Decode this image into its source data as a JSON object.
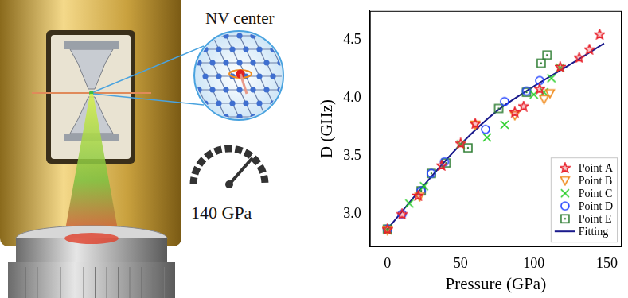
{
  "chart_data": {
    "type": "scatter",
    "xlabel": "Pressure (GPa)",
    "ylabel": "D (GHz)",
    "annotations": [
      "NV center",
      "140 GPa"
    ],
    "xlim": [
      -12,
      160
    ],
    "xticks": [
      0,
      50,
      100,
      150
    ],
    "ylim": [
      2.72,
      4.75
    ],
    "yticks": [
      {
        "value": 3,
        "label": "3.0"
      },
      {
        "value": 3.5,
        "label": "3.5"
      },
      {
        "value": 4,
        "label": "4.0"
      },
      {
        "value": 4.5,
        "label": "4.5"
      }
    ],
    "grid": false,
    "legend": "lower right",
    "series": [
      {
        "name": "Point A",
        "color": "#e8202a",
        "marker": "star",
        "x": [
          0,
          10,
          21,
          37,
          50,
          60,
          87,
          93,
          104,
          118,
          131,
          138,
          145
        ],
        "values": [
          2.87,
          3.0,
          3.16,
          3.42,
          3.61,
          3.78,
          3.88,
          3.93,
          4.08,
          4.27,
          4.35,
          4.42,
          4.55
        ]
      },
      {
        "name": "Point B",
        "color": "#f08c1e",
        "marker": "triangle_down",
        "x": [
          0,
          22,
          60,
          87,
          107,
          111
        ],
        "values": [
          2.86,
          3.15,
          3.77,
          3.85,
          3.99,
          4.04
        ]
      },
      {
        "name": "Point C",
        "color": "#22cc22",
        "marker": "x",
        "x": [
          0,
          15,
          25,
          50,
          68,
          80,
          100,
          107,
          112,
          118
        ],
        "values": [
          2.86,
          3.09,
          3.24,
          3.6,
          3.66,
          3.77,
          4.03,
          4.05,
          4.17,
          4.26
        ]
      },
      {
        "name": "Point D",
        "color": "#1f3fff",
        "marker": "circle",
        "x": [
          0,
          10,
          23,
          30,
          39,
          67,
          80,
          95,
          104
        ],
        "values": [
          2.87,
          3.0,
          3.2,
          3.35,
          3.45,
          3.73,
          3.97,
          4.06,
          4.15
        ]
      },
      {
        "name": "Point E",
        "color": "#2e7d32",
        "marker": "square",
        "x": [
          0,
          23,
          30,
          40,
          55,
          76,
          95,
          105,
          109
        ],
        "values": [
          2.87,
          3.2,
          3.35,
          3.44,
          3.57,
          3.91,
          4.05,
          4.3,
          4.37
        ]
      },
      {
        "name": "Fitting",
        "color": "#1a1a8c",
        "type": "line",
        "line_style": "solid",
        "x": [
          0,
          25,
          50,
          75,
          100,
          125,
          148
        ],
        "values": [
          2.87,
          3.25,
          3.6,
          3.89,
          4.1,
          4.29,
          4.47
        ]
      }
    ]
  }
}
